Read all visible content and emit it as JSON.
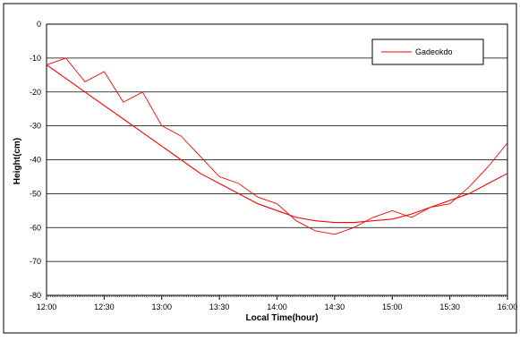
{
  "chart_data": {
    "type": "line",
    "xlabel": "Local Time(hour)",
    "ylabel": "Height(cm)",
    "x_ticks": [
      "12:00",
      "12:30",
      "13:00",
      "13:30",
      "14:00",
      "14:30",
      "15:00",
      "15:30",
      "16:00"
    ],
    "y_ticks": [
      "0",
      "-10",
      "-20",
      "-30",
      "-40",
      "-50",
      "-60",
      "-70",
      "-80"
    ],
    "xlim": [
      "12:00",
      "16:00"
    ],
    "ylim": [
      -80,
      0
    ],
    "grid": "horizontal",
    "legend_position": "top-right",
    "series_color": "#ff0000",
    "series": [
      {
        "name": "Gadeokdo",
        "x": [
          "12:00",
          "12:10",
          "12:20",
          "12:30",
          "12:40",
          "12:50",
          "13:00",
          "13:10",
          "13:20",
          "13:30",
          "13:40",
          "13:50",
          "14:00",
          "14:10",
          "14:20",
          "14:30",
          "14:40",
          "14:50",
          "15:00",
          "15:10",
          "15:20",
          "15:30",
          "15:40",
          "15:50",
          "16:00"
        ],
        "values": [
          -12,
          -10,
          -17,
          -14,
          -23,
          -20,
          -30,
          -33,
          -39,
          -45,
          -47,
          -51,
          -53,
          -58,
          -61,
          -62,
          -60,
          -57,
          -55,
          -57,
          -54,
          -53,
          -48,
          -42,
          -35
        ]
      },
      {
        "name": "",
        "x": [
          "12:00",
          "12:10",
          "12:20",
          "12:30",
          "12:40",
          "12:50",
          "13:00",
          "13:10",
          "13:20",
          "13:30",
          "13:40",
          "13:50",
          "14:00",
          "14:10",
          "14:20",
          "14:30",
          "14:40",
          "14:50",
          "15:00",
          "15:10",
          "15:20",
          "15:30",
          "15:40",
          "15:50",
          "16:00"
        ],
        "values": [
          -12,
          -16,
          -20,
          -24,
          -28,
          -32,
          -36,
          -40,
          -44,
          -47,
          -50,
          -53,
          -55,
          -57,
          -58,
          -58.5,
          -58.5,
          -58,
          -57.5,
          -56,
          -54,
          -52,
          -50,
          -47,
          -44
        ]
      }
    ]
  }
}
